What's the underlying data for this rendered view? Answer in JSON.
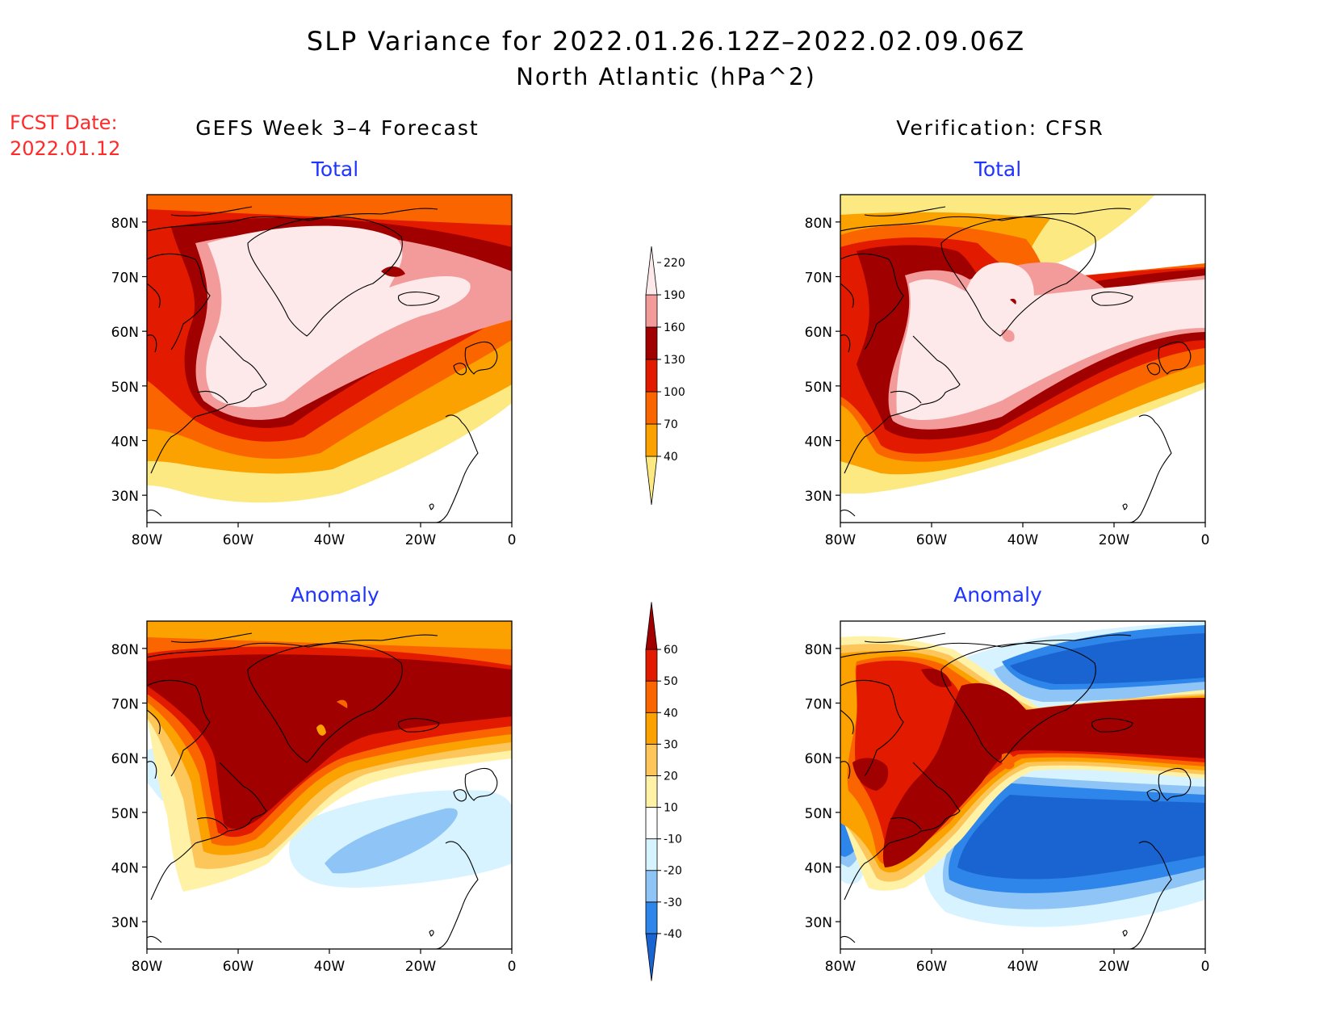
{
  "title": {
    "line1": "SLP Variance for 2022.01.26.12Z–2022.02.09.06Z",
    "line2": "North Atlantic (hPa^2)"
  },
  "fcst": {
    "label": "FCST Date:",
    "date": "2022.01.12",
    "color": "#ff2a2a"
  },
  "columns": {
    "left": "GEFS Week 3–4 Forecast",
    "right": "Verification: CFSR"
  },
  "panel_titles": {
    "total": "Total",
    "anomaly": "Anomaly"
  },
  "axes": {
    "lat_labels": [
      "80N",
      "70N",
      "60N",
      "50N",
      "40N",
      "30N"
    ],
    "lon_labels": [
      "80W",
      "60W",
      "40W",
      "20W",
      "0"
    ]
  },
  "colorbars": {
    "total": {
      "levels": [
        "40",
        "70",
        "100",
        "130",
        "160",
        "190",
        "220"
      ],
      "colors": [
        "#fde982",
        "#fba200",
        "#fb6500",
        "#e21a00",
        "#a10000",
        "#f39b9b",
        "#fde9e9"
      ]
    },
    "anomaly": {
      "levels": [
        "-40",
        "-30",
        "-20",
        "-10",
        "10",
        "20",
        "30",
        "40",
        "50",
        "60"
      ],
      "colors": [
        "#1a64d1",
        "#2f86ea",
        "#8ec5f6",
        "#d7f3ff",
        "#ffffff",
        "#fff2a7",
        "#fdc65b",
        "#fba200",
        "#fb6500",
        "#e21a00",
        "#a10000"
      ]
    }
  },
  "colors": {
    "title": "#000000",
    "panel_title": "#1f35ff",
    "fcst": "#ff2a2a"
  }
}
